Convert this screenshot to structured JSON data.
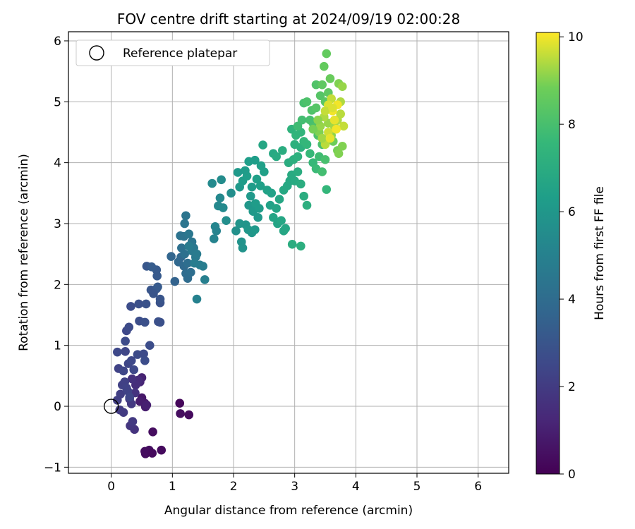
{
  "chart_data": {
    "type": "scatter",
    "title": "FOV centre drift starting at 2024/09/19 02:00:28",
    "xlabel": "Angular distance from reference (arcmin)",
    "ylabel": "Rotation from reference (arcmin)",
    "xlim": [
      -0.7,
      6.5
    ],
    "ylim": [
      -1.1,
      6.15
    ],
    "x_ticks": [
      "0",
      "1",
      "2",
      "3",
      "4",
      "5",
      "6"
    ],
    "y_ticks": [
      "−1",
      "0",
      "1",
      "2",
      "3",
      "4",
      "5",
      "6"
    ],
    "grid": true,
    "legend": {
      "placement": "top-left",
      "entries": [
        "Reference platepar"
      ]
    },
    "reference_point": {
      "x": 0,
      "y": 0,
      "label": "Reference platepar"
    },
    "colorbar": {
      "label": "Hours from first FF file",
      "colormap": "viridis",
      "range": [
        0,
        10.1
      ],
      "ticks": [
        "0",
        "2",
        "4",
        "6",
        "8",
        "10"
      ]
    },
    "points": [
      [
        0.56,
        -0.78,
        0.4
      ],
      [
        0.62,
        -0.72,
        0.4
      ],
      [
        0.55,
        -0.74,
        0.4
      ],
      [
        0.67,
        -0.77,
        0.3
      ],
      [
        0.82,
        -0.72,
        0.3
      ],
      [
        0.68,
        -0.42,
        0.4
      ],
      [
        1.12,
        0.05,
        0.2
      ],
      [
        1.13,
        -0.12,
        0.4
      ],
      [
        1.27,
        -0.14,
        0.3
      ],
      [
        0.5,
        0.14,
        0.7
      ],
      [
        0.55,
        0.05,
        0.8
      ],
      [
        0.56,
        -0.01,
        0.9
      ],
      [
        0.47,
        0.08,
        0.9
      ],
      [
        0.58,
        0.02,
        1.0
      ],
      [
        0.5,
        0.47,
        1.1
      ],
      [
        0.47,
        0.4,
        1.2
      ],
      [
        0.44,
        0.43,
        1.4
      ],
      [
        0.4,
        0.35,
        1.5
      ],
      [
        0.34,
        0.45,
        1.6
      ],
      [
        0.39,
        0.22,
        1.7
      ],
      [
        0.3,
        0.12,
        1.8
      ],
      [
        0.33,
        0.04,
        1.9
      ],
      [
        0.38,
        -0.38,
        1.7
      ],
      [
        0.31,
        -0.32,
        1.8
      ],
      [
        0.35,
        -0.25,
        1.9
      ],
      [
        0.14,
        -0.06,
        2.0
      ],
      [
        0.2,
        -0.1,
        2.0
      ],
      [
        0.1,
        0.1,
        2.1
      ],
      [
        0.15,
        0.2,
        2.1
      ],
      [
        0.18,
        0.35,
        2.2
      ],
      [
        0.22,
        0.4,
        2.2
      ],
      [
        0.25,
        0.3,
        2.3
      ],
      [
        0.27,
        0.25,
        2.3
      ],
      [
        0.3,
        0.15,
        2.4
      ],
      [
        0.12,
        0.62,
        2.3
      ],
      [
        0.2,
        0.58,
        2.4
      ],
      [
        0.28,
        0.7,
        2.4
      ],
      [
        0.33,
        0.75,
        2.5
      ],
      [
        0.37,
        0.6,
        2.5
      ],
      [
        0.23,
        0.9,
        2.4
      ],
      [
        0.1,
        0.89,
        2.5
      ],
      [
        0.43,
        0.85,
        2.6
      ],
      [
        0.53,
        0.86,
        2.6
      ],
      [
        0.55,
        0.75,
        2.7
      ],
      [
        0.63,
        1.0,
        2.7
      ],
      [
        0.25,
        1.24,
        2.5
      ],
      [
        0.29,
        1.3,
        2.6
      ],
      [
        0.23,
        1.07,
        2.6
      ],
      [
        0.46,
        1.4,
        2.7
      ],
      [
        0.55,
        1.38,
        2.8
      ],
      [
        0.8,
        1.38,
        2.8
      ],
      [
        0.77,
        1.39,
        2.8
      ],
      [
        0.32,
        1.64,
        2.7
      ],
      [
        0.45,
        1.68,
        2.8
      ],
      [
        0.57,
        1.68,
        2.9
      ],
      [
        0.8,
        1.7,
        2.9
      ],
      [
        0.65,
        1.91,
        3.0
      ],
      [
        0.8,
        1.76,
        3.0
      ],
      [
        0.74,
        1.93,
        3.1
      ],
      [
        0.76,
        1.96,
        3.2
      ],
      [
        0.58,
        2.3,
        3.1
      ],
      [
        0.74,
        2.24,
        3.2
      ],
      [
        0.75,
        2.14,
        3.2
      ],
      [
        0.66,
        2.29,
        3.3
      ],
      [
        0.69,
        1.85,
        3.0
      ],
      [
        1.04,
        2.05,
        3.6
      ],
      [
        0.98,
        2.46,
        3.7
      ],
      [
        1.1,
        2.37,
        3.8
      ],
      [
        1.14,
        2.45,
        3.8
      ],
      [
        1.19,
        2.3,
        3.9
      ],
      [
        1.22,
        2.18,
        4.0
      ],
      [
        1.25,
        2.1,
        4.0
      ],
      [
        1.3,
        2.2,
        4.1
      ],
      [
        1.25,
        2.35,
        4.1
      ],
      [
        1.2,
        2.5,
        4.2
      ],
      [
        1.15,
        2.6,
        4.2
      ],
      [
        1.13,
        2.8,
        4.3
      ],
      [
        1.19,
        2.79,
        4.3
      ],
      [
        1.2,
        3.0,
        4.4
      ],
      [
        1.22,
        3.13,
        4.4
      ],
      [
        1.27,
        2.83,
        4.5
      ],
      [
        1.32,
        2.7,
        4.4
      ],
      [
        1.35,
        2.6,
        4.5
      ],
      [
        1.32,
        2.55,
        4.6
      ],
      [
        1.38,
        2.45,
        4.6
      ],
      [
        1.4,
        2.5,
        4.7
      ],
      [
        1.27,
        2.63,
        4.7
      ],
      [
        1.36,
        2.35,
        4.8
      ],
      [
        1.45,
        2.32,
        4.8
      ],
      [
        1.5,
        2.3,
        4.8
      ],
      [
        1.53,
        2.08,
        4.9
      ],
      [
        1.4,
        1.76,
        5.0
      ],
      [
        1.68,
        2.75,
        5.1
      ],
      [
        1.7,
        2.95,
        5.2
      ],
      [
        1.72,
        2.88,
        5.1
      ],
      [
        1.75,
        3.29,
        5.3
      ],
      [
        1.78,
        3.42,
        5.3
      ],
      [
        1.83,
        3.26,
        5.4
      ],
      [
        1.8,
        3.72,
        5.5
      ],
      [
        1.88,
        3.05,
        5.6
      ],
      [
        1.96,
        3.5,
        5.6
      ],
      [
        2.04,
        2.88,
        5.7
      ],
      [
        1.65,
        3.66,
        5.4
      ],
      [
        2.13,
        2.7,
        5.8
      ],
      [
        2.15,
        2.6,
        5.8
      ],
      [
        2.1,
        3.0,
        5.9
      ],
      [
        2.2,
        2.98,
        5.9
      ],
      [
        2.24,
        2.9,
        6.0
      ],
      [
        2.3,
        2.85,
        6.0
      ],
      [
        2.35,
        2.9,
        6.1
      ],
      [
        2.25,
        3.3,
        6.0
      ],
      [
        2.32,
        3.2,
        6.1
      ],
      [
        2.4,
        3.1,
        6.1
      ],
      [
        2.36,
        3.33,
        6.2
      ],
      [
        2.42,
        3.25,
        6.2
      ],
      [
        2.28,
        3.45,
        6.1
      ],
      [
        2.3,
        3.6,
        6.2
      ],
      [
        2.1,
        3.6,
        6.1
      ],
      [
        2.15,
        3.7,
        6.2
      ],
      [
        2.22,
        3.78,
        6.3
      ],
      [
        2.19,
        3.87,
        6.2
      ],
      [
        2.07,
        3.84,
        6.1
      ],
      [
        2.25,
        4.02,
        6.3
      ],
      [
        2.35,
        4.04,
        6.3
      ],
      [
        2.45,
        3.95,
        6.4
      ],
      [
        2.5,
        3.85,
        6.4
      ],
      [
        2.38,
        3.73,
        6.4
      ],
      [
        2.44,
        3.62,
        6.4
      ],
      [
        2.55,
        3.55,
        6.5
      ],
      [
        2.62,
        3.5,
        6.5
      ],
      [
        2.6,
        3.3,
        6.5
      ],
      [
        2.7,
        3.25,
        6.6
      ],
      [
        2.65,
        3.1,
        6.6
      ],
      [
        2.72,
        3.0,
        6.6
      ],
      [
        2.78,
        3.05,
        6.7
      ],
      [
        2.82,
        2.88,
        6.7
      ],
      [
        2.85,
        2.92,
        6.7
      ],
      [
        2.75,
        3.4,
        6.7
      ],
      [
        2.82,
        3.55,
        6.8
      ],
      [
        2.88,
        3.62,
        6.8
      ],
      [
        2.92,
        3.7,
        6.8
      ],
      [
        2.95,
        3.8,
        6.9
      ],
      [
        3.0,
        3.7,
        6.9
      ],
      [
        3.05,
        3.85,
        7.0
      ],
      [
        3.1,
        3.65,
        7.0
      ],
      [
        3.15,
        3.45,
        7.0
      ],
      [
        3.2,
        3.3,
        7.1
      ],
      [
        2.96,
        2.66,
        7.0
      ],
      [
        3.1,
        2.63,
        7.1
      ],
      [
        2.48,
        4.29,
        6.7
      ],
      [
        2.65,
        4.15,
        6.8
      ],
      [
        2.7,
        4.1,
        6.9
      ],
      [
        2.8,
        4.2,
        7.0
      ],
      [
        2.9,
        4.0,
        7.0
      ],
      [
        2.98,
        4.05,
        7.1
      ],
      [
        3.05,
        4.1,
        7.2
      ],
      [
        3.1,
        4.25,
        7.2
      ],
      [
        3.0,
        4.3,
        7.2
      ],
      [
        2.95,
        4.55,
        7.3
      ],
      [
        3.02,
        4.45,
        7.4
      ],
      [
        3.1,
        4.5,
        7.4
      ],
      [
        3.15,
        4.35,
        7.5
      ],
      [
        3.2,
        4.3,
        7.5
      ],
      [
        3.25,
        4.15,
        7.6
      ],
      [
        3.3,
        4.0,
        7.6
      ],
      [
        3.35,
        3.9,
        7.7
      ],
      [
        3.4,
        4.1,
        7.8
      ],
      [
        3.45,
        3.85,
        7.9
      ],
      [
        3.5,
        4.05,
        8.0
      ],
      [
        3.45,
        4.3,
        8.0
      ],
      [
        3.38,
        4.45,
        8.1
      ],
      [
        3.3,
        4.65,
        8.1
      ],
      [
        3.25,
        4.7,
        8.0
      ],
      [
        3.12,
        4.7,
        7.9
      ],
      [
        3.05,
        4.6,
        7.8
      ],
      [
        3.15,
        4.98,
        8.0
      ],
      [
        3.2,
        5.0,
        8.1
      ],
      [
        3.28,
        4.86,
        8.2
      ],
      [
        3.35,
        4.9,
        8.3
      ],
      [
        3.35,
        5.28,
        8.2
      ],
      [
        3.42,
        5.1,
        8.3
      ],
      [
        3.5,
        5.0,
        8.4
      ],
      [
        3.55,
        5.15,
        8.5
      ],
      [
        3.48,
        5.58,
        8.6
      ],
      [
        3.52,
        5.79,
        8.6
      ],
      [
        3.45,
        5.28,
        8.5
      ],
      [
        3.58,
        5.38,
        8.7
      ],
      [
        3.52,
        3.56,
        7.5
      ],
      [
        3.63,
        4.35,
        8.8
      ],
      [
        3.7,
        4.2,
        8.9
      ],
      [
        3.72,
        4.15,
        9.0
      ],
      [
        3.78,
        4.27,
        9.0
      ],
      [
        3.6,
        4.45,
        9.1
      ],
      [
        3.55,
        4.65,
        9.2
      ],
      [
        3.65,
        4.6,
        9.3
      ],
      [
        3.7,
        4.7,
        9.4
      ],
      [
        3.75,
        4.8,
        9.5
      ],
      [
        3.8,
        4.6,
        9.6
      ],
      [
        3.75,
        5.0,
        9.4
      ],
      [
        3.72,
        5.3,
        9.0
      ],
      [
        3.78,
        5.25,
        9.2
      ],
      [
        3.6,
        5.05,
        9.6
      ],
      [
        3.55,
        4.95,
        9.8
      ],
      [
        3.62,
        4.85,
        10.0
      ],
      [
        3.4,
        4.5,
        9.0
      ],
      [
        3.42,
        4.6,
        9.2
      ],
      [
        3.48,
        4.75,
        9.4
      ],
      [
        3.5,
        4.85,
        9.6
      ],
      [
        3.55,
        4.5,
        9.7
      ],
      [
        3.5,
        4.3,
        9.5
      ],
      [
        3.45,
        4.4,
        9.3
      ],
      [
        3.38,
        4.7,
        9.1
      ],
      [
        3.3,
        4.55,
        8.9
      ],
      [
        3.65,
        4.7,
        9.9
      ],
      [
        3.68,
        4.55,
        10.0
      ],
      [
        3.7,
        4.95,
        10.0
      ],
      [
        3.58,
        4.4,
        9.9
      ],
      [
        3.62,
        4.9,
        9.8
      ]
    ]
  }
}
